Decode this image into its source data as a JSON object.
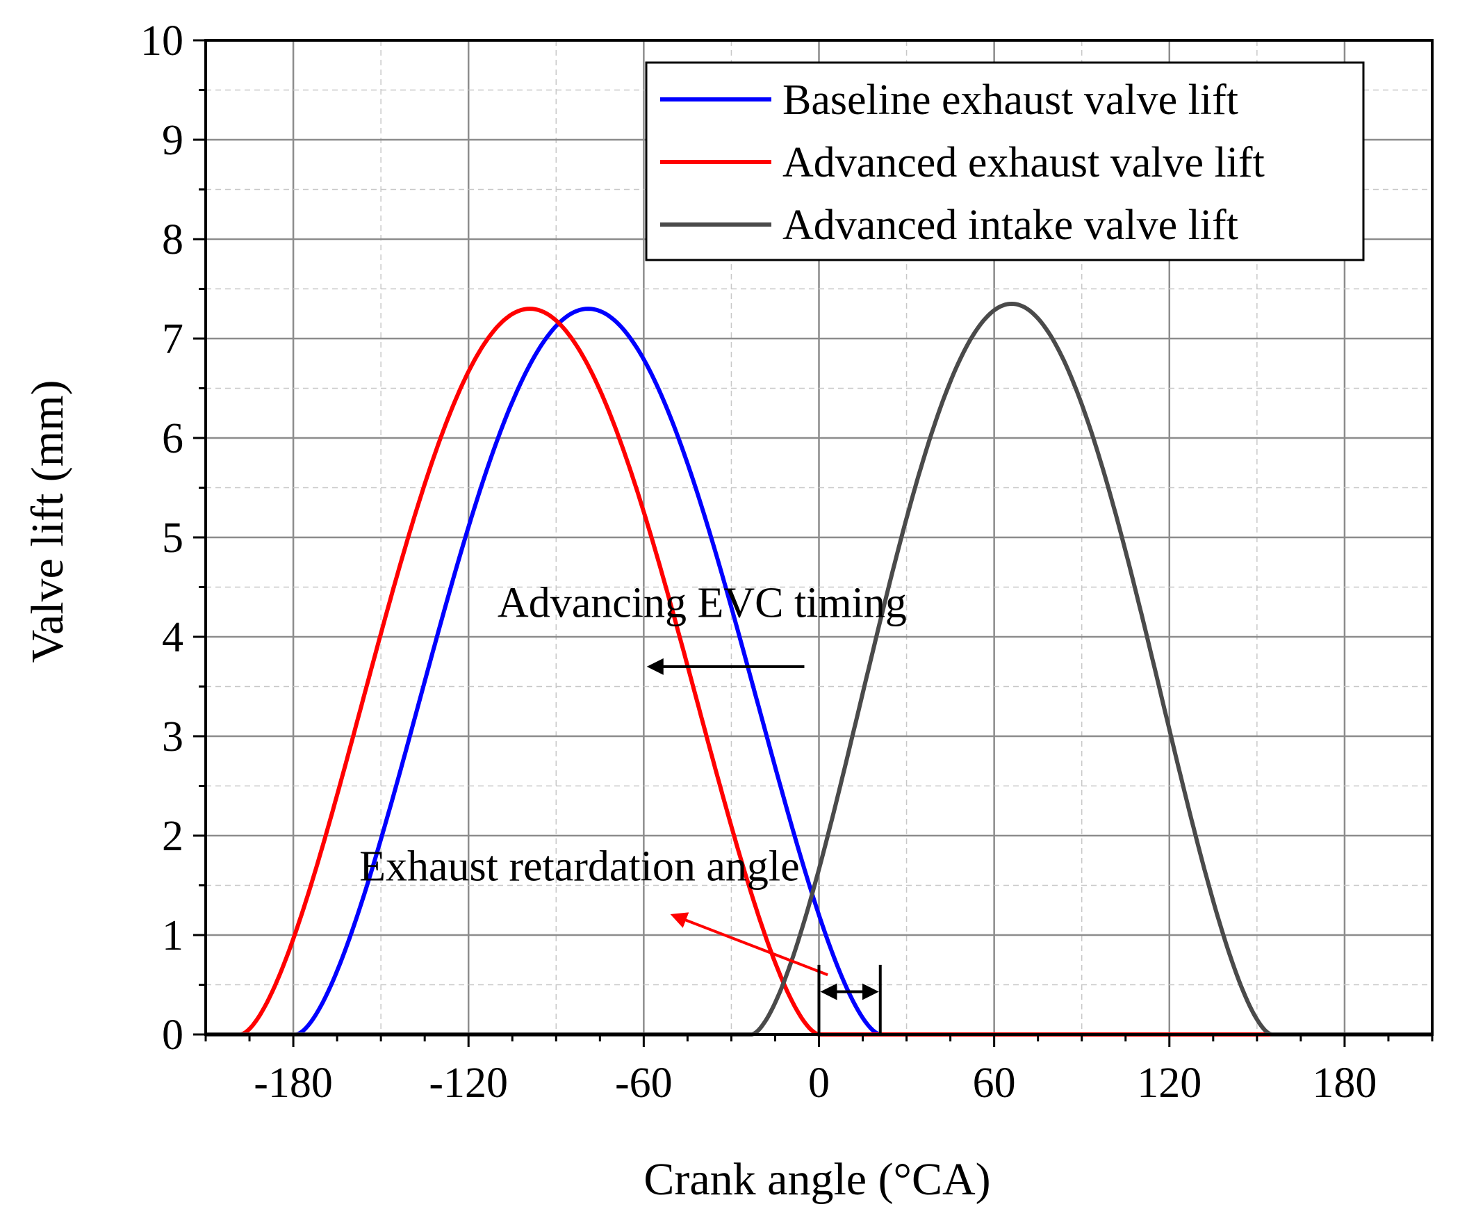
{
  "chart_data": {
    "type": "line",
    "title": "",
    "xlabel": "Crank angle (°CA)",
    "ylabel": "Valve lift (mm)",
    "xlim": [
      -210,
      210
    ],
    "ylim": [
      0,
      10
    ],
    "xticks": [
      -180,
      -120,
      -60,
      0,
      60,
      120,
      180
    ],
    "xtick_labels": [
      "-180",
      "-120",
      "-60",
      "0",
      "60",
      "120",
      "180"
    ],
    "yticks": [
      0,
      1,
      2,
      3,
      4,
      5,
      6,
      7,
      8,
      9,
      10
    ],
    "ytick_labels": [
      "0",
      "1",
      "2",
      "3",
      "4",
      "5",
      "6",
      "7",
      "8",
      "9",
      "10"
    ],
    "grid": true,
    "legend_position": "top-right",
    "series": [
      {
        "name": "Baseline exhaust valve lift",
        "color": "#0000ff",
        "open": -179,
        "close": 21,
        "peak": 7.3,
        "floor": [
          -210,
          210
        ]
      },
      {
        "name": "Advanced exhaust valve lift",
        "color": "#ff0000",
        "open": -198,
        "close": 0,
        "peak": 7.3,
        "floor": [
          -210,
          210
        ]
      },
      {
        "name": "Advanced intake valve lift",
        "color": "#4a4a4a",
        "open": -23,
        "close": 155,
        "peak": 7.35,
        "floor": [
          -210,
          210
        ]
      }
    ],
    "annotations": [
      {
        "text": "Advancing EVC timing",
        "x": -40,
        "y": 4.2,
        "arrow_from": [
          -5,
          3.7
        ],
        "arrow_to": [
          -58,
          3.7
        ],
        "color": "#000000"
      },
      {
        "text": "Exhaust retardation angle",
        "x": -82,
        "y": 1.55,
        "arrow_from": [
          3,
          0.6
        ],
        "arrow_to": [
          -50,
          1.2
        ],
        "color": "#ff0000"
      },
      {
        "text": "",
        "type": "dimension",
        "x_from": 0,
        "x_to": 21,
        "y": 0.43,
        "color": "#000000"
      }
    ]
  }
}
